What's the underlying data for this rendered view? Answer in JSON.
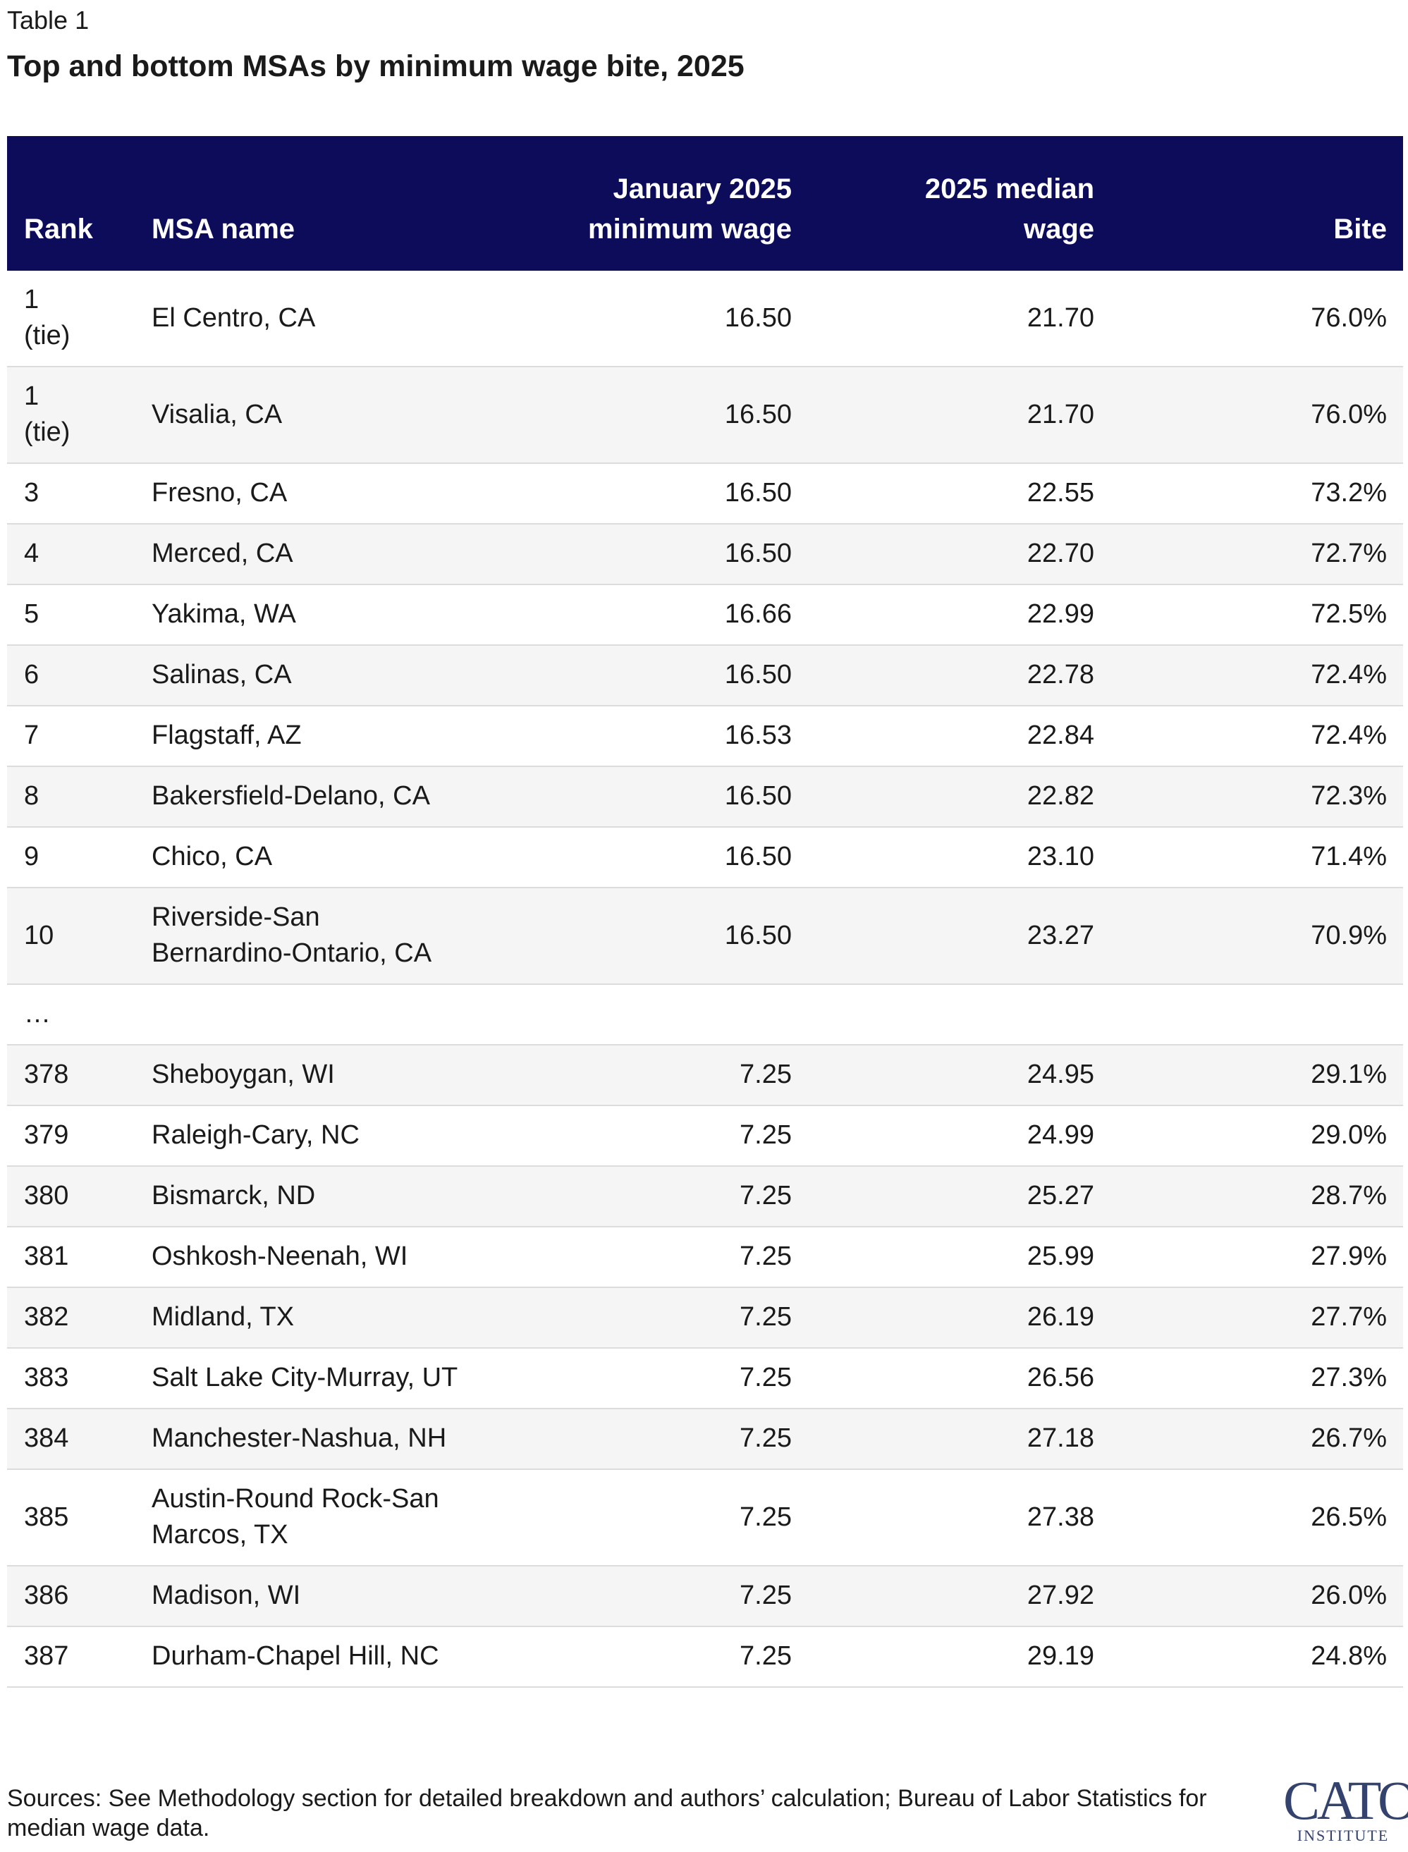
{
  "label": "Table 1",
  "title": "Top and bottom MSAs by minimum wage bite, 2025",
  "table": {
    "columns": [
      "Rank",
      "MSA name",
      "January 2025 minimum wage",
      "2025 median wage",
      "Bite"
    ],
    "rows": [
      [
        "1 (tie)",
        "El Centro, CA",
        "16.50",
        "21.70",
        "76.0%"
      ],
      [
        "1 (tie)",
        "Visalia, CA",
        "16.50",
        "21.70",
        "76.0%"
      ],
      [
        "3",
        "Fresno, CA",
        "16.50",
        "22.55",
        "73.2%"
      ],
      [
        "4",
        "Merced, CA",
        "16.50",
        "22.70",
        "72.7%"
      ],
      [
        "5",
        "Yakima, WA",
        "16.66",
        "22.99",
        "72.5%"
      ],
      [
        "6",
        "Salinas, CA",
        "16.50",
        "22.78",
        "72.4%"
      ],
      [
        "7",
        "Flagstaff, AZ",
        "16.53",
        "22.84",
        "72.4%"
      ],
      [
        "8",
        "Bakersfield-Delano, CA",
        "16.50",
        "22.82",
        "72.3%"
      ],
      [
        "9",
        "Chico, CA",
        "16.50",
        "23.10",
        "71.4%"
      ],
      [
        "10",
        "Riverside-San Bernardino-Ontario, CA",
        "16.50",
        "23.27",
        "70.9%"
      ],
      [
        "…"
      ],
      [
        "378",
        "Sheboygan, WI",
        "7.25",
        "24.95",
        "29.1%"
      ],
      [
        "379",
        "Raleigh-Cary, NC",
        "7.25",
        "24.99",
        "29.0%"
      ],
      [
        "380",
        "Bismarck, ND",
        "7.25",
        "25.27",
        "28.7%"
      ],
      [
        "381",
        "Oshkosh-Neenah, WI",
        "7.25",
        "25.99",
        "27.9%"
      ],
      [
        "382",
        "Midland, TX",
        "7.25",
        "26.19",
        "27.7%"
      ],
      [
        "383",
        "Salt Lake City-Murray, UT",
        "7.25",
        "26.56",
        "27.3%"
      ],
      [
        "384",
        "Manchester-Nashua, NH",
        "7.25",
        "27.18",
        "26.7%"
      ],
      [
        "385",
        "Austin-Round Rock-San Marcos, TX",
        "7.25",
        "27.38",
        "26.5%"
      ],
      [
        "386",
        "Madison, WI",
        "7.25",
        "27.92",
        "26.0%"
      ],
      [
        "387",
        "Durham-Chapel Hill, NC",
        "7.25",
        "29.19",
        "24.8%"
      ]
    ]
  },
  "footer": {
    "sources": "Sources: See Methodology section for detailed breakdown and authors’ calculation; Bureau of Labor Statistics for median wage data.",
    "logo": "CATO",
    "logo_sub": "INSTITUTE"
  }
}
